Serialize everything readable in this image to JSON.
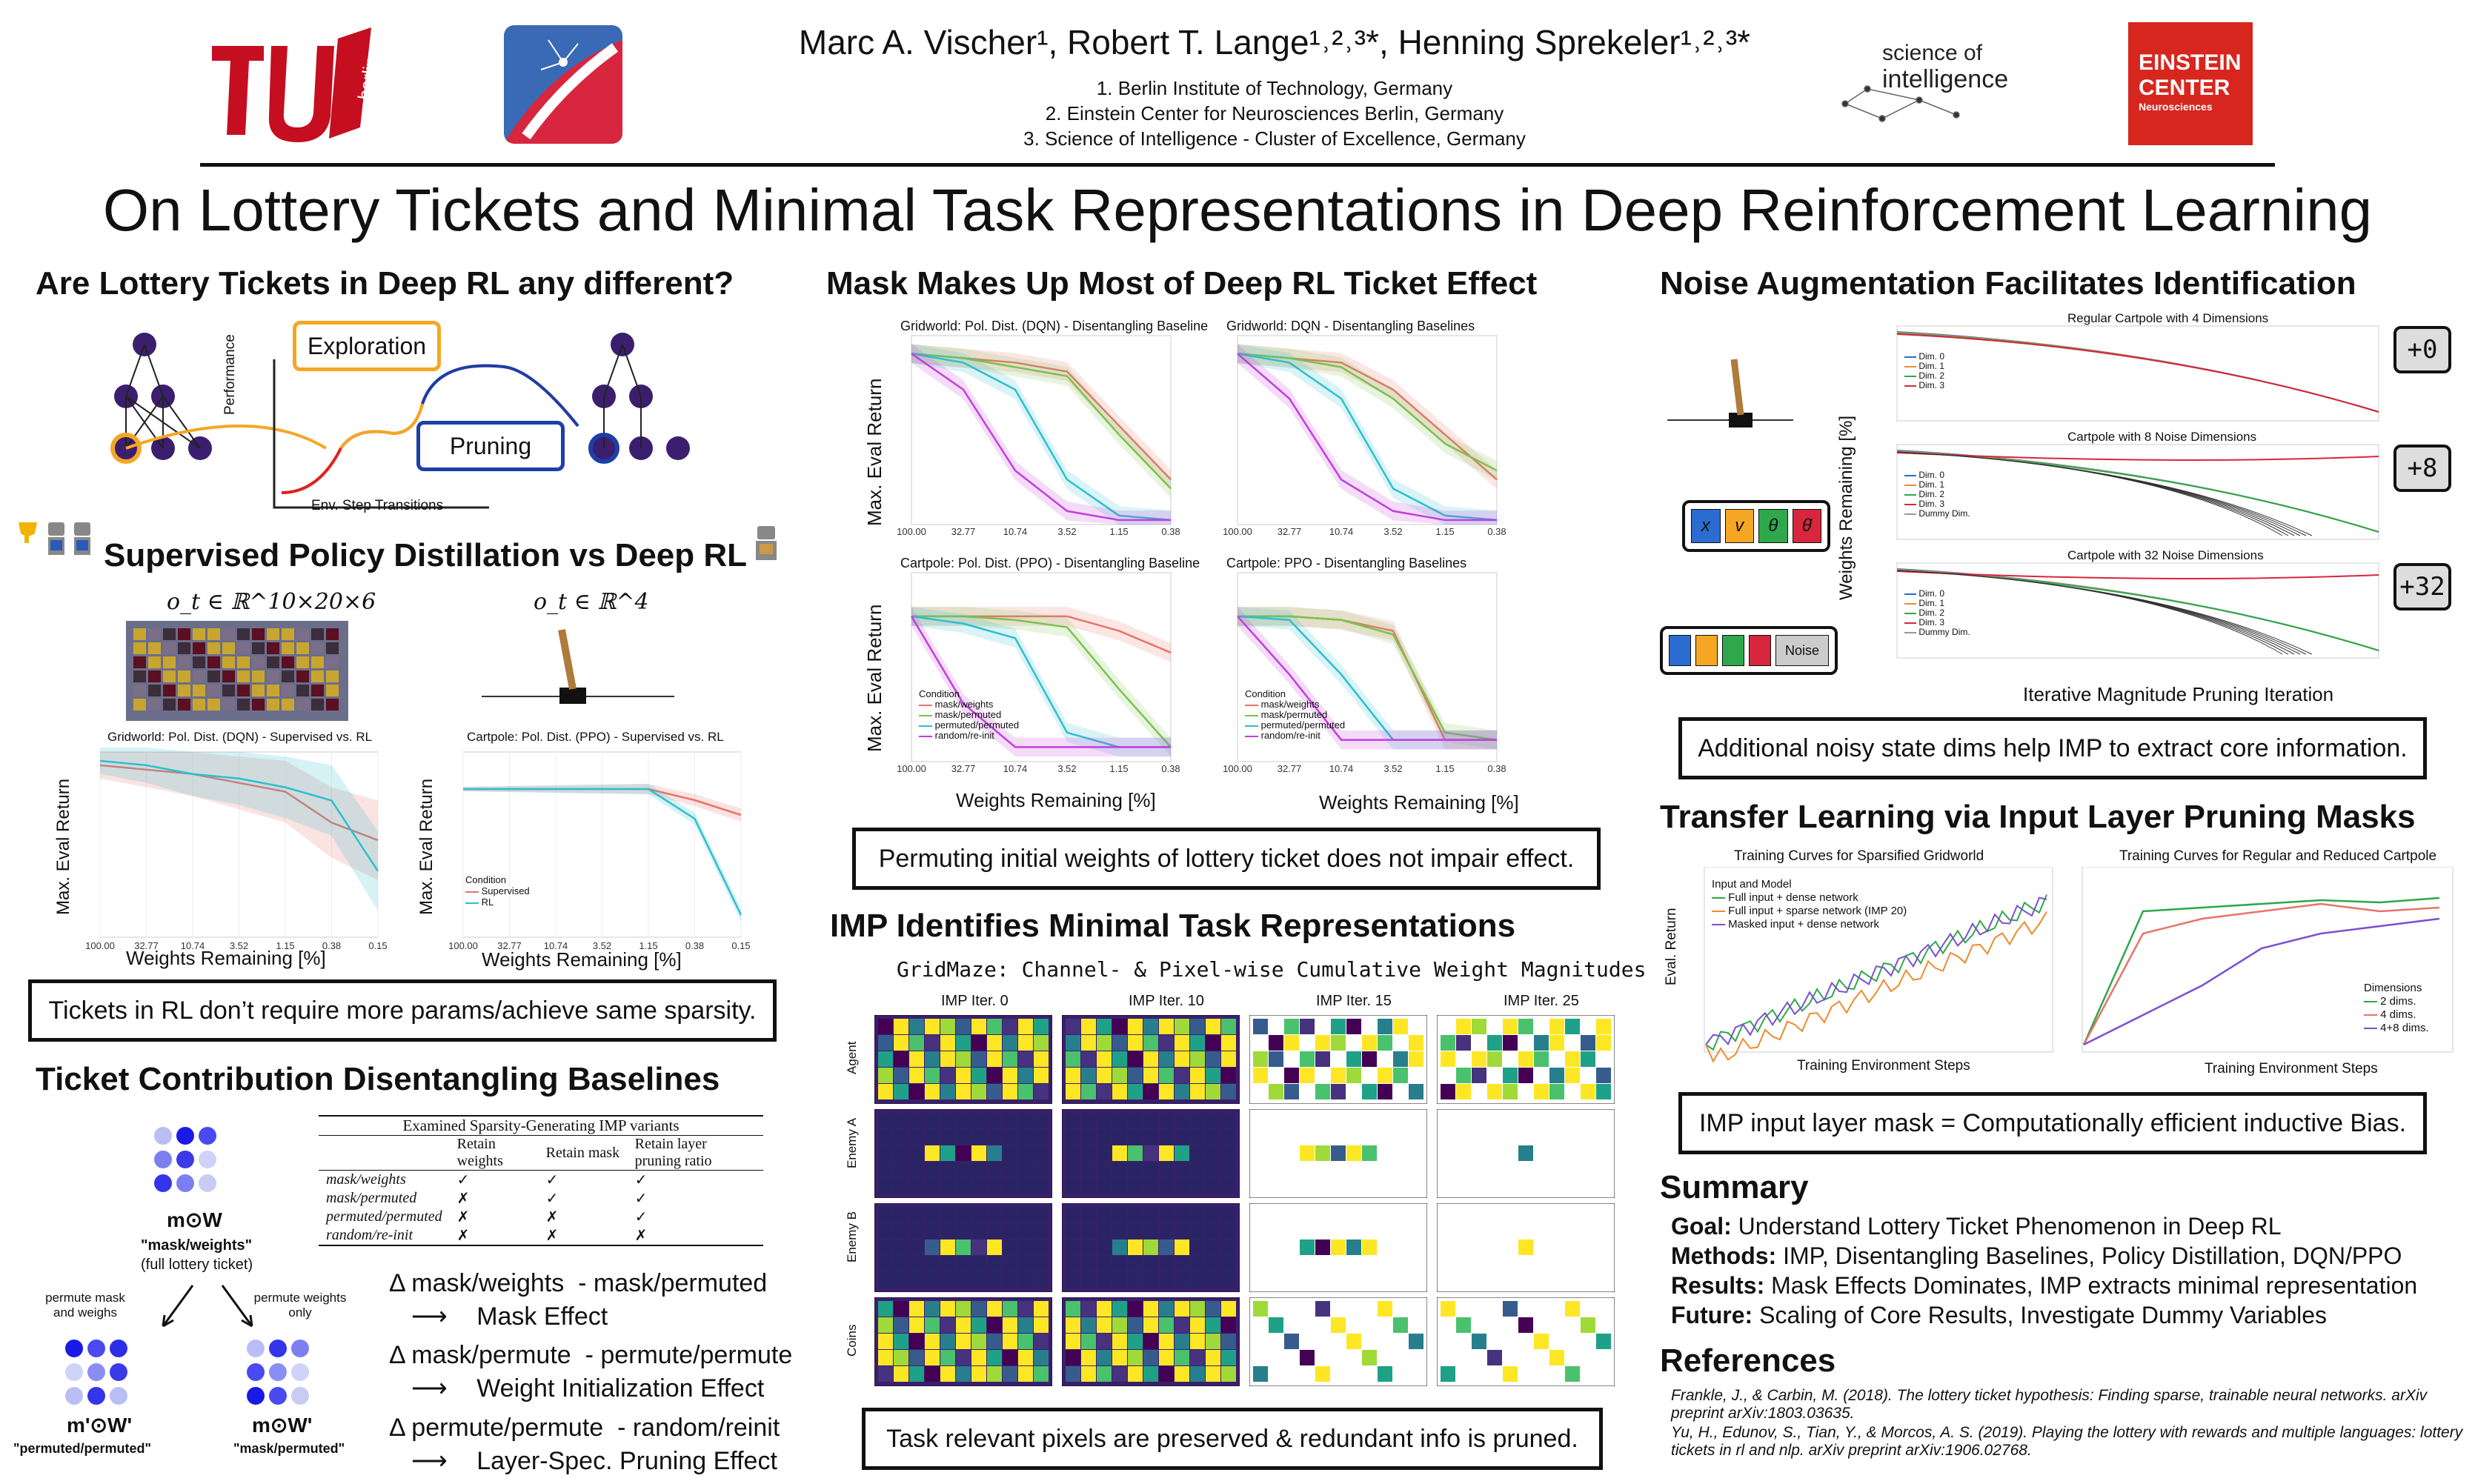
{
  "header": {
    "authors": "Marc A. Vischer¹, Robert T. Lange¹˒²˒³*, Henning Sprekeler¹˒²˒³*",
    "aff1": "1. Berlin Institute of Technology, Germany",
    "aff2": "2. Einstein Center for Neurosciences Berlin, Germany",
    "aff3": "3. Science of Intelligence - Cluster of Excellence, Germany",
    "tu_logo": "berlin",
    "soi_logo1": "science of",
    "soi_logo2": "intelligence",
    "ecn_logo1": "EINSTEIN",
    "ecn_logo2": "CENTER",
    "ecn_logo3": "Neurosciences"
  },
  "title": "On Lottery Tickets and Minimal Task Representations in Deep Reinforcement Learning",
  "col1": {
    "h1": "Are Lottery Tickets in Deep RL any different?",
    "exploration": "Exploration",
    "pruning": "Pruning",
    "perf": "Performance",
    "env": "Env. Step Transitions",
    "h2": "Supervised Policy Distillation vs Deep RL",
    "obs1": "o_t ∈ ℝ^10×20×6",
    "obs2": "o_t ∈ ℝ^4",
    "plot1_title": "Gridworld: Pol. Dist. (DQN) - Supervised vs. RL",
    "plot2_title": "Cartpole: Pol. Dist. (PPO) - Supervised vs. RL",
    "ylabel": "Max. Eval Return",
    "xlabel": "Weights Remaining [%]",
    "cond": "Condition",
    "leg_sup": "Supervised",
    "leg_rl": "RL",
    "box1": "Tickets in RL don’t require more params/achieve same sparsity.",
    "h3": "Ticket Contribution Disentangling Baselines",
    "mw": "m⊙W",
    "mw_q": "\"mask/weights\"",
    "mw_full": "(full lottery ticket)",
    "perm_mw": "permute mask and weighs",
    "perm_w": "permute weights only",
    "mpw": "m'⊙W'",
    "mpw_q": "\"permuted/permuted\"",
    "mw2": "m⊙W'",
    "mw2_q": "\"mask/permuted\"",
    "table_caption": "Examined Sparsity-Generating IMP variants",
    "table_head": [
      "",
      "Retain weights",
      "Retain mask",
      "Retain layer pruning ratio"
    ],
    "table_rows": [
      [
        "mask/weights",
        "✓",
        "✓",
        "✓"
      ],
      [
        "mask/permuted",
        "✗",
        "✓",
        "✓"
      ],
      [
        "permuted/permuted",
        "✗",
        "✗",
        "✓"
      ],
      [
        "random/re-init",
        "✗",
        "✗",
        "✗"
      ]
    ],
    "d1a": "Δ mask/weights  - mask/permuted",
    "d1b": "Mask Effect",
    "d2a": "Δ mask/permute  - permute/permute",
    "d2b": "Weight Initialization Effect",
    "d3a": "Δ permute/permute  - random/reinit",
    "d3b": "Layer-Spec. Pruning Effect"
  },
  "col2": {
    "h1": "Mask Makes Up Most of Deep RL Ticket Effect",
    "p1": "Gridworld: Pol. Dist. (DQN) - Disentangling Baseline",
    "p2": "Gridworld: DQN - Disentangling Baselines",
    "p3": "Cartpole: Pol. Dist. (PPO) - Disentangling Baseline",
    "p4": "Cartpole: PPO - Disentangling Baselines",
    "ylabel": "Max. Eval Return",
    "xlabel": "Weights Remaining [%]",
    "cond": "Condition",
    "leg": [
      "mask/weights",
      "mask/permuted",
      "permuted/permuted",
      "random/re-init"
    ],
    "box1": "Permuting initial weights of lottery ticket does not impair effect.",
    "h2": "IMP Identifies Minimal Task Representations",
    "grid_title": "GridMaze: Channel- & Pixel-wise Cumulative Weight Magnitudes",
    "iters": [
      "IMP Iter.  0",
      "IMP Iter. 10",
      "IMP Iter. 15",
      "IMP Iter. 25"
    ],
    "rows": [
      "Agent",
      "Enemy A",
      "Enemy B",
      "Coins"
    ],
    "box2": "Task relevant pixels are preserved & redundant info is pruned."
  },
  "col3": {
    "h1": "Noise Augmentation Facilitates Identification",
    "t1": "Regular Cartpole with 4 Dimensions",
    "t2": "Cartpole with 8 Noise Dimensions",
    "t3": "Cartpole with 32 Noise Dimensions",
    "ylabel": "Weights Remaining [%]",
    "xlabel": "Iterative Magnitude Pruning Iteration",
    "badges": [
      "+0",
      "+8",
      "+32"
    ],
    "dims": [
      "Dim. 0",
      "Dim. 1",
      "Dim. 2",
      "Dim. 3",
      "Dummy Dim."
    ],
    "state_syms": [
      "x",
      "v",
      "θ",
      "θ̇"
    ],
    "noise": "Noise",
    "box1": "Additional noisy state dims help IMP to extract core information.",
    "h2": "Transfer Learning via Input Layer Pruning Masks",
    "t4": "Training Curves for Sparsified Gridworld",
    "t5": "Training Curves for Regular and Reduced Cartpole",
    "leg_title": "Input and Model",
    "leg4": [
      "Full input + dense network",
      "Full input + sparse network (IMP 20)",
      "Masked input + dense network"
    ],
    "leg_dims": "Dimensions",
    "leg5": [
      "2 dims.",
      "4 dims.",
      "4+8 dims."
    ],
    "eval": "Eval. Return",
    "env": "Training Environment Steps",
    "box2": "IMP input layer mask = Computationally efficient inductive Bias.",
    "h3": "Summary",
    "sum": [
      [
        "Goal:",
        "Understand Lottery Ticket Phenomenon in Deep RL"
      ],
      [
        "Methods:",
        "IMP, Disentangling Baselines, Policy Distillation, DQN/PPO"
      ],
      [
        "Results:",
        "Mask Effects Dominates, IMP extracts minimal representation"
      ],
      [
        "Future:",
        "Scaling of Core Results, Investigate Dummy Variables"
      ]
    ],
    "h4": "References",
    "ref1": "Frankle, J., & Carbin, M. (2018). The lottery ticket hypothesis: Finding sparse, trainable neural networks. arXiv preprint arXiv:1803.03635.",
    "ref2": "Yu, H., Edunov, S., Tian, Y., & Morcos, A. S. (2019). Playing the lottery with rewards and multiple languages: lottery tickets in rl and nlp. arXiv preprint arXiv:1906.02768."
  },
  "chart_data": [
    {
      "type": "line",
      "title": "Gridworld: Pol. Dist. (DQN) - Supervised vs. RL",
      "xlabel": "Weights Remaining [%]",
      "ylabel": "Max. Eval Return",
      "x": [
        "100.00",
        "32.77",
        "10.74",
        "3.52",
        "1.15",
        "0.38",
        "0.15"
      ],
      "ylim": [
        0,
        42
      ],
      "series": [
        {
          "name": "Supervised",
          "color": "#e8736a",
          "values": [
            39,
            38,
            37,
            35,
            33,
            26,
            22
          ]
        },
        {
          "name": "RL",
          "color": "#2dbfcf",
          "values": [
            40,
            39,
            37,
            36,
            34,
            31,
            15
          ]
        }
      ]
    },
    {
      "type": "line",
      "title": "Cartpole: Pol. Dist. (PPO) - Supervised vs. RL",
      "xlabel": "Weights Remaining [%]",
      "ylabel": "Max. Eval Return",
      "x": [
        "100.00",
        "32.77",
        "10.74",
        "3.52",
        "1.15",
        "0.38",
        "0.15"
      ],
      "ylim": [
        0,
        250
      ],
      "series": [
        {
          "name": "Supervised",
          "color": "#e8736a",
          "values": [
            200,
            200,
            200,
            200,
            200,
            185,
            165
          ]
        },
        {
          "name": "RL",
          "color": "#2dbfcf",
          "values": [
            200,
            200,
            200,
            200,
            200,
            160,
            30
          ]
        }
      ]
    }
  ]
}
